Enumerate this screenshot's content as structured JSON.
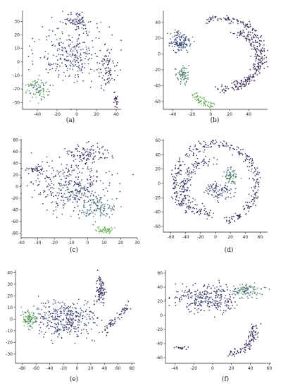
{
  "colors": {
    "low": "#3b1f4f",
    "mid": "#3d5a8a",
    "high": "#79c94a"
  },
  "chart_data": [
    {
      "type": "scatter",
      "caption": "(a)",
      "xlim": [
        -55,
        45
      ],
      "ylim": [
        -35,
        38
      ],
      "xticks": [
        -40,
        -20,
        0,
        20,
        40
      ],
      "yticks": [
        -30,
        -20,
        -10,
        0,
        10,
        20,
        30
      ],
      "clusters": [
        {
          "shape": "blob",
          "cx": -5,
          "cy": 5,
          "rx": 30,
          "ry": 18,
          "n": 260,
          "c": [
            0.1,
            0.55
          ]
        },
        {
          "shape": "blob",
          "cx": 0,
          "cy": 30,
          "rx": 14,
          "ry": 6,
          "n": 80,
          "c": [
            0.1,
            0.45
          ]
        },
        {
          "shape": "blob",
          "cx": -40,
          "cy": -20,
          "rx": 10,
          "ry": 8,
          "n": 90,
          "c": [
            0.55,
            0.95
          ]
        },
        {
          "shape": "blob",
          "cx": 32,
          "cy": -5,
          "rx": 8,
          "ry": 14,
          "n": 80,
          "c": [
            0.0,
            0.2
          ]
        },
        {
          "shape": "blob",
          "cx": 40,
          "cy": -28,
          "rx": 2,
          "ry": 4,
          "n": 25,
          "c": [
            0.0,
            0.1
          ]
        }
      ]
    },
    {
      "type": "scatter",
      "caption": "(b)",
      "xlim": [
        -50,
        60
      ],
      "ylim": [
        -70,
        55
      ],
      "xticks": [
        -40,
        -20,
        0,
        20,
        40
      ],
      "yticks": [
        -60,
        -40,
        -20,
        0,
        20,
        40
      ],
      "clusters": [
        {
          "shape": "arc",
          "cx": 10,
          "cy": 0,
          "r": 45,
          "ry": 45,
          "t0": -1.6,
          "t1": 1.9,
          "w": 2.5,
          "n": 220,
          "c": [
            0.0,
            0.2
          ]
        },
        {
          "shape": "arc",
          "cx": 25,
          "cy": -5,
          "r": 25,
          "ry": 32,
          "t0": -1.6,
          "t1": 1.6,
          "w": 2.5,
          "n": 140,
          "c": [
            0.0,
            0.2
          ]
        },
        {
          "shape": "blob",
          "cx": -32,
          "cy": 15,
          "rx": 10,
          "ry": 12,
          "n": 140,
          "c": [
            0.25,
            0.6
          ]
        },
        {
          "shape": "blob",
          "cx": -30,
          "cy": -25,
          "rx": 6,
          "ry": 10,
          "n": 70,
          "c": [
            0.5,
            0.8
          ]
        },
        {
          "shape": "arc",
          "cx": 10,
          "cy": -40,
          "r": 30,
          "ry": 25,
          "t0": 3.6,
          "t1": 4.4,
          "w": 2,
          "n": 70,
          "c": [
            0.75,
            0.95
          ]
        }
      ]
    },
    {
      "type": "scatter",
      "caption": "(c)",
      "xlim": [
        -40,
        30
      ],
      "ylim": [
        -88,
        82
      ],
      "xticks": [
        -40,
        -30,
        -20,
        -10,
        0,
        10,
        20,
        30
      ],
      "yticks": [
        -80,
        -60,
        -40,
        -20,
        0,
        20,
        40,
        60,
        80
      ],
      "clusters": [
        {
          "shape": "blob",
          "cx": -10,
          "cy": 0,
          "rx": 20,
          "ry": 35,
          "n": 340,
          "c": [
            0.1,
            0.5
          ]
        },
        {
          "shape": "blob",
          "cx": 0,
          "cy": 55,
          "rx": 12,
          "ry": 15,
          "n": 110,
          "c": [
            0.05,
            0.35
          ]
        },
        {
          "shape": "blob",
          "cx": 5,
          "cy": -40,
          "rx": 10,
          "ry": 18,
          "n": 110,
          "c": [
            0.4,
            0.75
          ]
        },
        {
          "shape": "blob",
          "cx": 10,
          "cy": -75,
          "rx": 5,
          "ry": 5,
          "n": 50,
          "c": [
            0.8,
            1.0
          ]
        },
        {
          "shape": "blob",
          "cx": -32,
          "cy": 30,
          "rx": 6,
          "ry": 6,
          "n": 40,
          "c": [
            0.1,
            0.3
          ]
        }
      ]
    },
    {
      "type": "scatter",
      "caption": "(d)",
      "xlim": [
        -70,
        70
      ],
      "ylim": [
        -68,
        62
      ],
      "xticks": [
        -60,
        -40,
        -20,
        0,
        20,
        40,
        60
      ],
      "yticks": [
        -60,
        -40,
        -20,
        0,
        20,
        40,
        60
      ],
      "clusters": [
        {
          "shape": "arc",
          "cx": 0,
          "cy": 0,
          "r": 55,
          "ry": 55,
          "t0": -1.3,
          "t1": 4.0,
          "w": 3,
          "n": 320,
          "c": [
            0.0,
            0.3
          ]
        },
        {
          "shape": "arc",
          "cx": -5,
          "cy": -5,
          "r": 38,
          "ry": 38,
          "t0": 1.4,
          "t1": 4.6,
          "w": 4,
          "n": 180,
          "c": [
            0.1,
            0.4
          ]
        },
        {
          "shape": "blob",
          "cx": 20,
          "cy": 10,
          "rx": 8,
          "ry": 10,
          "n": 70,
          "c": [
            0.5,
            0.85
          ]
        },
        {
          "shape": "blob",
          "cx": 5,
          "cy": -10,
          "rx": 18,
          "ry": 10,
          "n": 90,
          "c": [
            0.15,
            0.5
          ]
        }
      ]
    },
    {
      "type": "scatter",
      "caption": "(e)",
      "xlim": [
        -90,
        85
      ],
      "ylim": [
        -38,
        42
      ],
      "xticks": [
        -80,
        -60,
        -40,
        -20,
        0,
        20,
        40,
        60,
        80
      ],
      "yticks": [
        -30,
        -20,
        -10,
        0,
        10,
        20,
        30,
        40
      ],
      "clusters": [
        {
          "shape": "blob",
          "cx": -20,
          "cy": 0,
          "rx": 40,
          "ry": 14,
          "n": 360,
          "c": [
            0.15,
            0.55
          ]
        },
        {
          "shape": "blob",
          "cx": -70,
          "cy": 0,
          "rx": 10,
          "ry": 6,
          "n": 90,
          "c": [
            0.65,
            0.95
          ]
        },
        {
          "shape": "blob",
          "cx": 35,
          "cy": 25,
          "rx": 6,
          "ry": 12,
          "n": 90,
          "c": [
            0.05,
            0.3
          ]
        },
        {
          "shape": "line",
          "x0": 40,
          "y0": -10,
          "x1": 75,
          "y1": 12,
          "w": 2,
          "n": 60,
          "c": [
            0.0,
            0.15
          ]
        }
      ]
    },
    {
      "type": "scatter",
      "caption": "(f)",
      "xlim": [
        -50,
        62
      ],
      "ylim": [
        -68,
        64
      ],
      "xticks": [
        -40,
        -20,
        0,
        20,
        40,
        60
      ],
      "yticks": [
        -60,
        -40,
        -20,
        0,
        20,
        40,
        60
      ],
      "clusters": [
        {
          "shape": "blob",
          "cx": -5,
          "cy": 25,
          "rx": 30,
          "ry": 18,
          "n": 280,
          "c": [
            0.1,
            0.45
          ]
        },
        {
          "shape": "blob",
          "cx": 35,
          "cy": 35,
          "rx": 14,
          "ry": 8,
          "n": 100,
          "c": [
            0.45,
            0.85
          ]
        },
        {
          "shape": "arc",
          "cx": 10,
          "cy": -20,
          "r": 35,
          "ry": 35,
          "t0": -1.4,
          "t1": 0.2,
          "w": 3,
          "n": 100,
          "c": [
            0.0,
            0.2
          ]
        },
        {
          "shape": "blob",
          "cx": -35,
          "cy": -45,
          "rx": 6,
          "ry": 3,
          "n": 15,
          "c": [
            0.0,
            0.2
          ]
        }
      ]
    }
  ]
}
